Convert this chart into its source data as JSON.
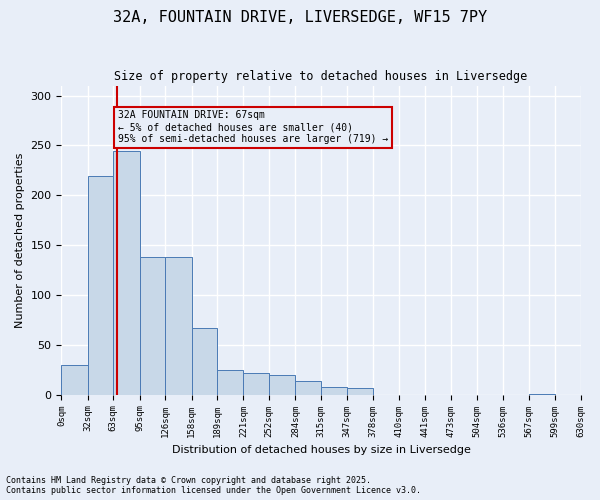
{
  "title_line1": "32A, FOUNTAIN DRIVE, LIVERSEDGE, WF15 7PY",
  "title_line2": "Size of property relative to detached houses in Liversedge",
  "xlabel": "Distribution of detached houses by size in Liversedge",
  "ylabel": "Number of detached properties",
  "bin_edges": [
    0,
    32,
    63,
    95,
    126,
    158,
    189,
    221,
    252,
    284,
    315,
    347,
    378,
    410,
    441,
    473,
    504,
    536,
    567,
    599,
    630
  ],
  "bar_heights": [
    30,
    219,
    244,
    138,
    138,
    67,
    25,
    22,
    20,
    14,
    8,
    7,
    0,
    0,
    0,
    0,
    0,
    0,
    1,
    0
  ],
  "bar_color": "#c8d8e8",
  "bar_edge_color": "#4a7ab5",
  "property_size": 67,
  "property_label": "32A FOUNTAIN DRIVE: 67sqm",
  "annotation_line2": "← 5% of detached houses are smaller (40)",
  "annotation_line3": "95% of semi-detached houses are larger (719) →",
  "vline_color": "#cc0000",
  "annotation_box_color": "#cc0000",
  "bg_color": "#e8eef8",
  "grid_color": "#ffffff",
  "ylim": [
    0,
    310
  ],
  "yticks": [
    0,
    50,
    100,
    150,
    200,
    250,
    300
  ],
  "footnote1": "Contains HM Land Registry data © Crown copyright and database right 2025.",
  "footnote2": "Contains public sector information licensed under the Open Government Licence v3.0.",
  "tick_labels": [
    "0sqm",
    "32sqm",
    "63sqm",
    "95sqm",
    "126sqm",
    "158sqm",
    "189sqm",
    "221sqm",
    "252sqm",
    "284sqm",
    "315sqm",
    "347sqm",
    "378sqm",
    "410sqm",
    "441sqm",
    "473sqm",
    "504sqm",
    "536sqm",
    "567sqm",
    "599sqm",
    "630sqm"
  ]
}
